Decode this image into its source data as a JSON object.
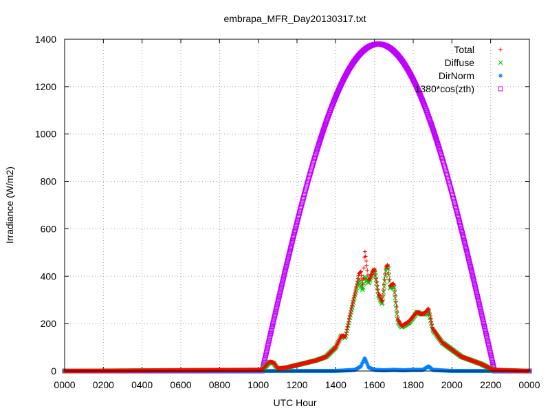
{
  "chart_data": {
    "type": "scatter",
    "title": "embrapa_MFR_Day20130317.txt",
    "xlabel": "UTC Hour",
    "ylabel": "Irradiance (W/m2)",
    "xlim": [
      0,
      24
    ],
    "ylim": [
      0,
      1400
    ],
    "grid": true,
    "legend_position": "top-right",
    "x_ticks": [
      "0000",
      "0200",
      "0400",
      "0600",
      "0800",
      "1000",
      "1200",
      "1400",
      "1600",
      "1800",
      "2000",
      "2200",
      "0000"
    ],
    "y_ticks": [
      "0",
      "200",
      "400",
      "600",
      "800",
      "1000",
      "1200",
      "1400"
    ],
    "series": [
      {
        "name": "Total",
        "marker": "+",
        "color": "#ff0000",
        "x": [
          0,
          10.2,
          10.6,
          10.8,
          11,
          11.5,
          12,
          12.5,
          13,
          13.5,
          14,
          14.3,
          14.5,
          14.8,
          15,
          15.2,
          15.3,
          15.4,
          15.5,
          15.7,
          15.9,
          16,
          16.2,
          16.4,
          16.6,
          16.7,
          16.8,
          17,
          17.2,
          17.4,
          17.6,
          17.8,
          18,
          18.2,
          18.4,
          18.6,
          18.8,
          19,
          19.5,
          20,
          20.5,
          21,
          21.5,
          22,
          22.1,
          24
        ],
        "y": [
          0,
          5,
          40,
          35,
          10,
          15,
          25,
          35,
          45,
          60,
          100,
          150,
          145,
          260,
          330,
          410,
          420,
          360,
          510,
          380,
          420,
          430,
          330,
          290,
          440,
          450,
          360,
          370,
          220,
          190,
          200,
          210,
          230,
          250,
          240,
          245,
          265,
          180,
          120,
          90,
          60,
          45,
          30,
          10,
          5,
          0
        ]
      },
      {
        "name": "Diffuse",
        "marker": "x",
        "color": "#00c000",
        "x": [
          0,
          10.2,
          10.6,
          10.8,
          11,
          11.5,
          12,
          12.5,
          13,
          13.5,
          14,
          14.3,
          14.5,
          14.8,
          15,
          15.2,
          15.3,
          15.4,
          15.5,
          15.7,
          15.9,
          16,
          16.2,
          16.4,
          16.6,
          16.7,
          16.8,
          17,
          17.2,
          17.4,
          17.6,
          17.8,
          18,
          18.2,
          18.4,
          18.6,
          18.8,
          19,
          19.5,
          20,
          20.5,
          21,
          21.5,
          22,
          22.1,
          24
        ],
        "y": [
          0,
          5,
          38,
          33,
          10,
          15,
          25,
          35,
          45,
          60,
          100,
          150,
          140,
          250,
          320,
          390,
          360,
          340,
          400,
          370,
          410,
          430,
          320,
          280,
          430,
          440,
          350,
          360,
          210,
          185,
          195,
          205,
          225,
          250,
          240,
          240,
          250,
          175,
          120,
          90,
          60,
          45,
          30,
          10,
          5,
          0
        ]
      },
      {
        "name": "DirNorm",
        "marker": "*",
        "color": "#0080ff",
        "x": [
          0,
          10.2,
          11,
          12,
          13,
          14,
          15,
          15.3,
          15.5,
          15.7,
          16,
          16.5,
          17,
          17.5,
          18,
          18.5,
          18.7,
          18.8,
          19,
          20,
          21,
          22,
          24
        ],
        "y": [
          0,
          0,
          0,
          0,
          0,
          0,
          5,
          20,
          55,
          15,
          5,
          3,
          5,
          3,
          5,
          5,
          15,
          20,
          5,
          0,
          0,
          0,
          0
        ]
      },
      {
        "name": "1380*cos(zth)",
        "marker": "square",
        "color": "#c000ff",
        "formula": {
          "amplitude": 1380,
          "rise": 10.2,
          "noon": 16.2,
          "set": 22.2
        }
      }
    ]
  }
}
